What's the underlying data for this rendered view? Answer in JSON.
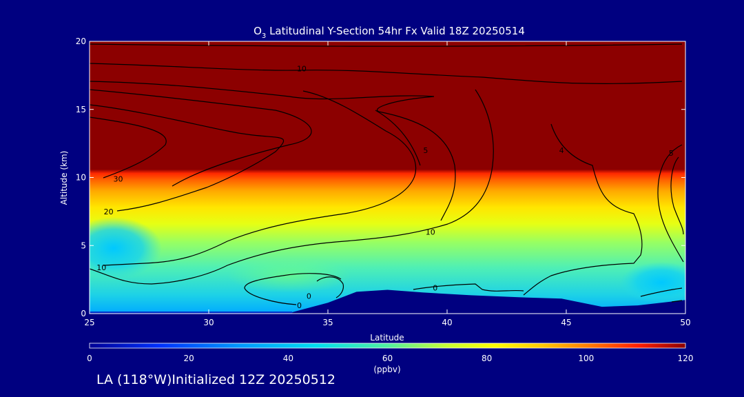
{
  "chart_data": {
    "type": "heatmap",
    "title": "O3 Latitudinal Y-Section 54hr  Fx Valid 18Z 20250514",
    "title_main": "O",
    "title_sub": "3",
    "title_rest": " Latitudinal Y-Section 54hr  Fx Valid 18Z 20250514",
    "xlabel": "Latitude",
    "ylabel": "Altitude (km)",
    "xlim": [
      25,
      50
    ],
    "ylim": [
      0,
      20
    ],
    "x_ticks": [
      25,
      30,
      35,
      40,
      45,
      50
    ],
    "y_ticks": [
      0,
      5,
      10,
      15,
      20
    ],
    "colorbar": {
      "ticks": [
        0,
        20,
        40,
        60,
        80,
        100,
        120
      ],
      "label": "(ppbv)",
      "range": [
        0,
        120
      ]
    },
    "tropopause_altitude_km": 10.4,
    "contour_labels": [
      {
        "text": "10",
        "lat": 33.9,
        "alt": 18.0
      },
      {
        "text": "30",
        "lat": 26.2,
        "alt": 9.9
      },
      {
        "text": "20",
        "lat": 25.8,
        "alt": 7.5
      },
      {
        "text": "10",
        "lat": 25.5,
        "alt": 3.4
      },
      {
        "text": "10",
        "lat": 39.3,
        "alt": 6.0
      },
      {
        "text": "5",
        "lat": 39.1,
        "alt": 12.0
      },
      {
        "text": "4",
        "lat": 44.8,
        "alt": 12.0
      },
      {
        "text": "5",
        "lat": 49.4,
        "alt": 11.8
      },
      {
        "text": "0",
        "lat": 39.5,
        "alt": 1.9
      },
      {
        "text": "0",
        "lat": 33.8,
        "alt": 0.6
      },
      {
        "text": "0",
        "lat": 34.2,
        "alt": 1.3
      }
    ],
    "surface_profile": [
      {
        "lat": 33.5,
        "alt": 0.1
      },
      {
        "lat": 35.0,
        "alt": 0.8
      },
      {
        "lat": 36.2,
        "alt": 1.6
      },
      {
        "lat": 37.5,
        "alt": 1.75
      },
      {
        "lat": 39.0,
        "alt": 1.55
      },
      {
        "lat": 41.0,
        "alt": 1.35
      },
      {
        "lat": 43.0,
        "alt": 1.2
      },
      {
        "lat": 44.8,
        "alt": 1.1
      },
      {
        "lat": 46.5,
        "alt": 0.5
      },
      {
        "lat": 48.0,
        "alt": 0.6
      },
      {
        "lat": 50.0,
        "alt": 1.0
      }
    ],
    "grid": false,
    "legend": "bottom colorbar"
  },
  "footer": {
    "location_text": "LA (118°W)Initialized 12Z 20250512"
  },
  "colors": {
    "background": "#000080",
    "text": "#ffffff",
    "contour": "#000000"
  }
}
